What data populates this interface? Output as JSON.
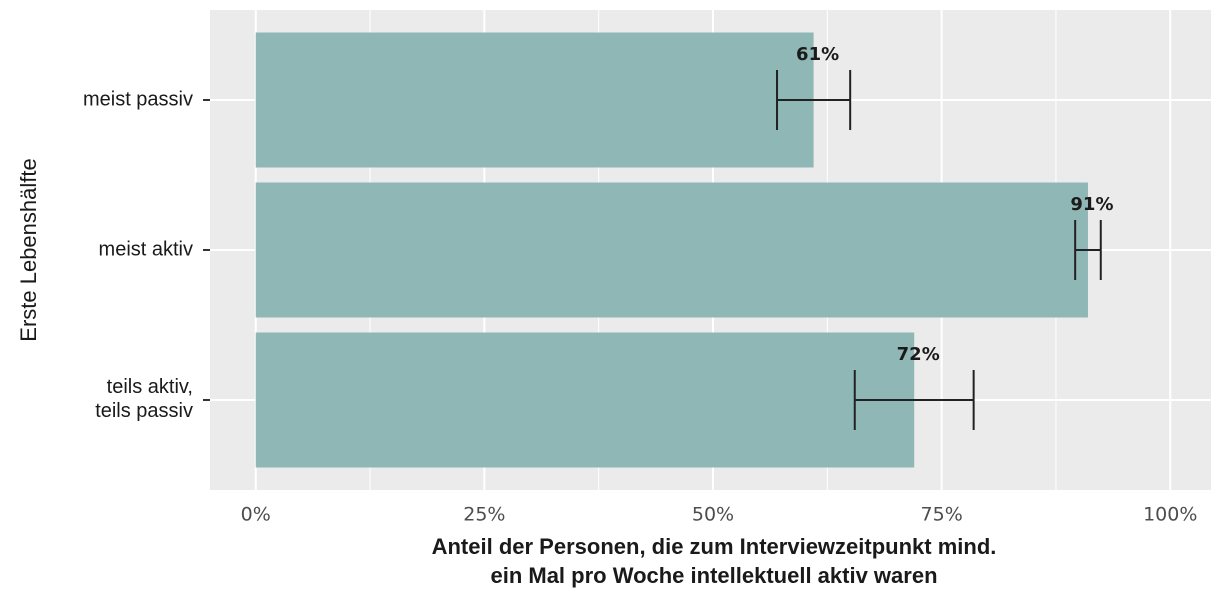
{
  "chart_data": {
    "type": "bar",
    "orientation": "horizontal",
    "categories": [
      "meist passiv",
      "meist aktiv",
      "teils aktiv,\nteils passiv"
    ],
    "values": [
      61,
      91,
      72
    ],
    "value_labels": [
      "61%",
      "91%",
      "72%"
    ],
    "errors": [
      4,
      1.4,
      6.5
    ],
    "color": "#8db6b4",
    "error_color": "#222222",
    "xlabel": "Anteil der Personen, die zum Interviewzeitpunkt mind.\nein Mal pro Woche intellektuell aktiv waren",
    "ylabel": "Erste Lebenshälfte",
    "xlim": [
      -5,
      105
    ],
    "xticks": [
      {
        "value": 0,
        "label": "0%"
      },
      {
        "value": 25,
        "label": "25%"
      },
      {
        "value": 50,
        "label": "50%"
      },
      {
        "value": 75,
        "label": "75%"
      },
      {
        "value": 100,
        "label": "100%"
      }
    ],
    "xminorticks": [
      12.5,
      37.5,
      62.5,
      87.5
    ],
    "grid": true
  }
}
